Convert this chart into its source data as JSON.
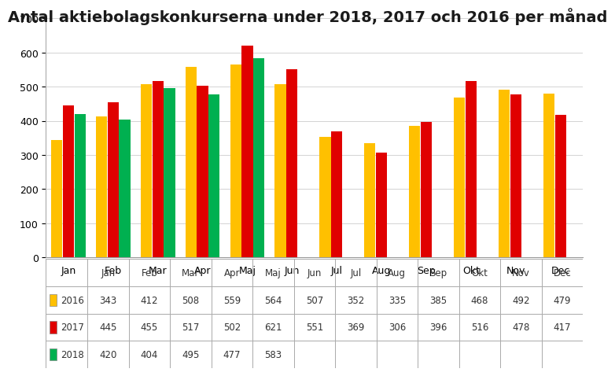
{
  "title": "Antal aktiebolagskonkurserna under 2018, 2017 och 2016 per månad",
  "months": [
    "Jan",
    "Feb",
    "Mar",
    "Apr",
    "Maj",
    "Jun",
    "Jul",
    "Aug",
    "Sep",
    "Okt",
    "Nov",
    "Dec"
  ],
  "series": {
    "2016": [
      343,
      412,
      508,
      559,
      564,
      507,
      352,
      335,
      385,
      468,
      492,
      479
    ],
    "2017": [
      445,
      455,
      517,
      502,
      621,
      551,
      369,
      306,
      396,
      516,
      478,
      417
    ],
    "2018": [
      420,
      404,
      495,
      477,
      583,
      null,
      null,
      null,
      null,
      null,
      null,
      null
    ]
  },
  "colors": {
    "2016": "#FFC000",
    "2017": "#E00000",
    "2018": "#00B050"
  },
  "ylim": [
    0,
    700
  ],
  "yticks": [
    0,
    100,
    200,
    300,
    400,
    500,
    600,
    700
  ],
  "bar_width": 0.26,
  "title_fontsize": 14,
  "tick_fontsize": 9,
  "table_fontsize": 8.5,
  "background_color": "#FFFFFF"
}
